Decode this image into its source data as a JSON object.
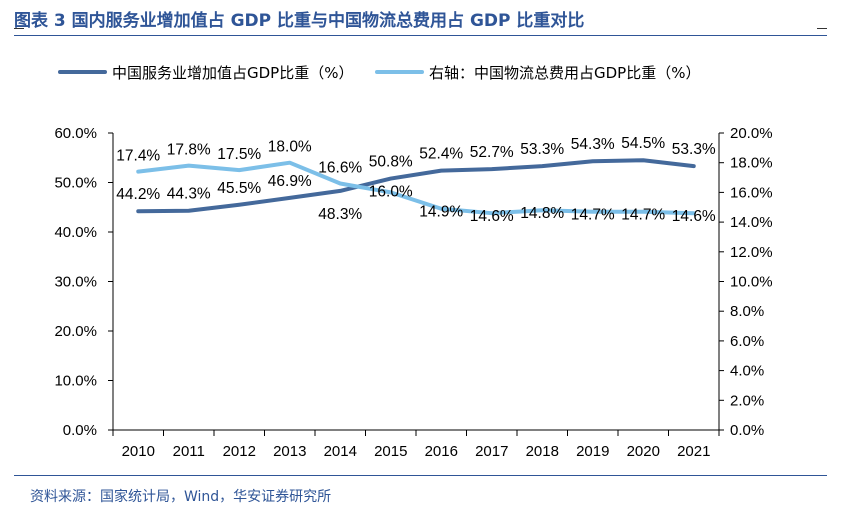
{
  "header": {
    "title": "图表 3 国内服务业增加值占 GDP 比重与中国物流总费用占 GDP 比重对比"
  },
  "footer": {
    "source": "资料来源：国家统计局，Wind，华安证券研究所"
  },
  "chart_data": {
    "type": "line",
    "categories": [
      "2010",
      "2011",
      "2012",
      "2013",
      "2014",
      "2015",
      "2016",
      "2017",
      "2018",
      "2019",
      "2020",
      "2021"
    ],
    "series": [
      {
        "name": "中国服务业增加值占GDP比重（%）",
        "axis": "left",
        "color": "#44699b",
        "values": [
          44.2,
          44.3,
          45.5,
          46.9,
          48.3,
          50.8,
          52.4,
          52.7,
          53.3,
          54.3,
          54.5,
          53.3
        ],
        "labels": [
          "44.2%",
          "44.3%",
          "45.5%",
          "46.9%",
          "48.3%",
          "50.8%",
          "52.4%",
          "52.7%",
          "53.3%",
          "54.3%",
          "54.5%",
          "53.3%"
        ]
      },
      {
        "name": "右轴：中国物流总费用占GDP比重（%）",
        "axis": "right",
        "color": "#7cbfe8",
        "values": [
          17.4,
          17.8,
          17.5,
          18.0,
          16.6,
          16.0,
          14.9,
          14.6,
          14.8,
          14.7,
          14.7,
          14.6
        ],
        "labels": [
          "17.4%",
          "17.8%",
          "17.5%",
          "18.0%",
          "16.6%",
          "16.0%",
          "14.9%",
          "14.6%",
          "14.8%",
          "14.7%",
          "14.7%",
          "14.6%"
        ]
      }
    ],
    "y_left": {
      "min": 0,
      "max": 60,
      "ticks": [
        0,
        10,
        20,
        30,
        40,
        50,
        60
      ],
      "tick_labels": [
        "0.0%",
        "10.0%",
        "20.0%",
        "30.0%",
        "40.0%",
        "50.0%",
        "60.0%"
      ]
    },
    "y_right": {
      "min": 0,
      "max": 20,
      "ticks": [
        0,
        2,
        4,
        6,
        8,
        10,
        12,
        14,
        16,
        18,
        20
      ],
      "tick_labels": [
        "0.0%",
        "2.0%",
        "4.0%",
        "6.0%",
        "8.0%",
        "10.0%",
        "12.0%",
        "14.0%",
        "16.0%",
        "18.0%",
        "20.0%"
      ]
    },
    "legend": "top",
    "grid": false
  }
}
